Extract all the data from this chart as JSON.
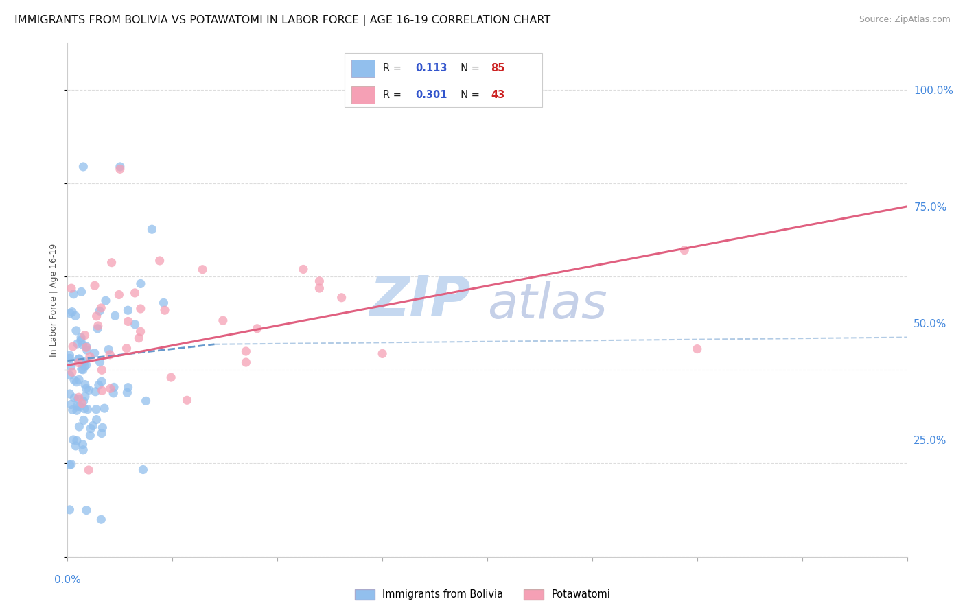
{
  "title": "IMMIGRANTS FROM BOLIVIA VS POTAWATOMI IN LABOR FORCE | AGE 16-19 CORRELATION CHART",
  "source": "Source: ZipAtlas.com",
  "ylabel": "In Labor Force | Age 16-19",
  "ylabel_right_ticks": [
    "100.0%",
    "75.0%",
    "50.0%",
    "25.0%"
  ],
  "ylabel_right_values": [
    1.0,
    0.75,
    0.5,
    0.25
  ],
  "xlim": [
    0.0,
    0.4
  ],
  "ylim": [
    0.0,
    1.1
  ],
  "bolivia_R": 0.113,
  "bolivia_N": 85,
  "potawatomi_R": 0.301,
  "potawatomi_N": 43,
  "bolivia_color": "#92bfed",
  "bolivia_line_color": "#6699cc",
  "potawatomi_color": "#f5a0b5",
  "potawatomi_line_color": "#e06080",
  "watermark_zip": "ZIP",
  "watermark_atlas": "atlas",
  "watermark_color_zip": "#c5d8f0",
  "watermark_color_atlas": "#c5d0e8",
  "legend_label_color": "#222222",
  "legend_R_color": "#3355cc",
  "legend_N_color": "#cc2222",
  "background_color": "#ffffff",
  "grid_color": "#dddddd",
  "tick_color": "#4488dd",
  "title_color": "#111111",
  "title_fontsize": 11.5,
  "source_fontsize": 9,
  "axis_label_fontsize": 9,
  "bolivia_trendline_xend": 0.07,
  "bolivia_trendline_ystart": 0.42,
  "bolivia_trendline_yend": 0.455,
  "potawatomi_trendline_xend": 0.4,
  "potawatomi_trendline_ystart": 0.41,
  "potawatomi_trendline_yend": 0.75
}
